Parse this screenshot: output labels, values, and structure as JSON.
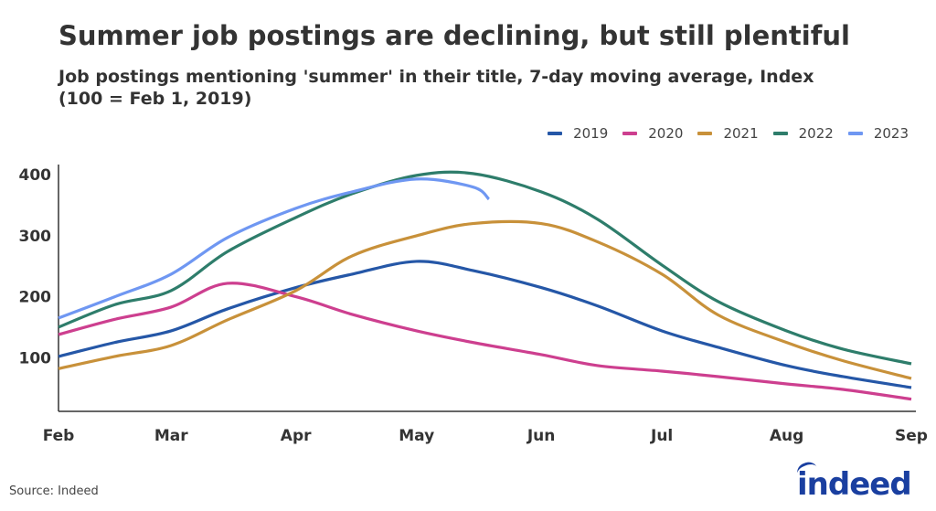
{
  "chart_data": {
    "type": "line",
    "title": "Summer job postings are declining, but still plentiful",
    "subtitle": "Job postings mentioning 'summer' in their title, 7-day moving average, Index (100 = Feb 1, 2019)",
    "xlabel": "",
    "ylabel": "",
    "x_ticks": [
      "Feb",
      "Mar",
      "Apr",
      "May",
      "Jun",
      "Jul",
      "Aug",
      "Sep"
    ],
    "y_ticks": [
      100,
      200,
      300,
      400
    ],
    "ylim": [
      0,
      420
    ],
    "xlim": [
      "Feb 1",
      "Sep 1"
    ],
    "grid": false,
    "legend_position": "top-right",
    "x": [
      "Feb 1",
      "Feb 15",
      "Mar 1",
      "Mar 15",
      "Apr 1",
      "Apr 15",
      "May 1",
      "May 15",
      "Jun 1",
      "Jun 15",
      "Jul 1",
      "Jul 15",
      "Aug 1",
      "Aug 15",
      "Sep 1"
    ],
    "series": [
      {
        "name": "2019",
        "color": "#2557a7",
        "values": [
          102,
          125,
          144,
          180,
          215,
          237,
          258,
          243,
          215,
          185,
          144,
          117,
          87,
          69,
          51
        ]
      },
      {
        "name": "2020",
        "color": "#cd3f8f",
        "values": [
          138,
          163,
          183,
          222,
          200,
          171,
          144,
          125,
          105,
          87,
          78,
          69,
          57,
          48,
          32
        ]
      },
      {
        "name": "2021",
        "color": "#c8913a",
        "values": [
          82,
          102,
          120,
          162,
          210,
          267,
          300,
          320,
          320,
          290,
          237,
          170,
          125,
          95,
          66
        ]
      },
      {
        "name": "2022",
        "color": "#2e7d6b",
        "values": [
          150,
          187,
          210,
          274,
          330,
          369,
          399,
          402,
          372,
          327,
          252,
          192,
          144,
          114,
          90
        ]
      },
      {
        "name": "2023",
        "color": "#6f97f2",
        "values": [
          165,
          200,
          237,
          297,
          345,
          372,
          393,
          380,
          null,
          null,
          null,
          null,
          null,
          null,
          null
        ],
        "last_point": {
          "x": "May 19",
          "y": 360
        }
      }
    ]
  },
  "source": "Source: Indeed",
  "logo": "indeed"
}
